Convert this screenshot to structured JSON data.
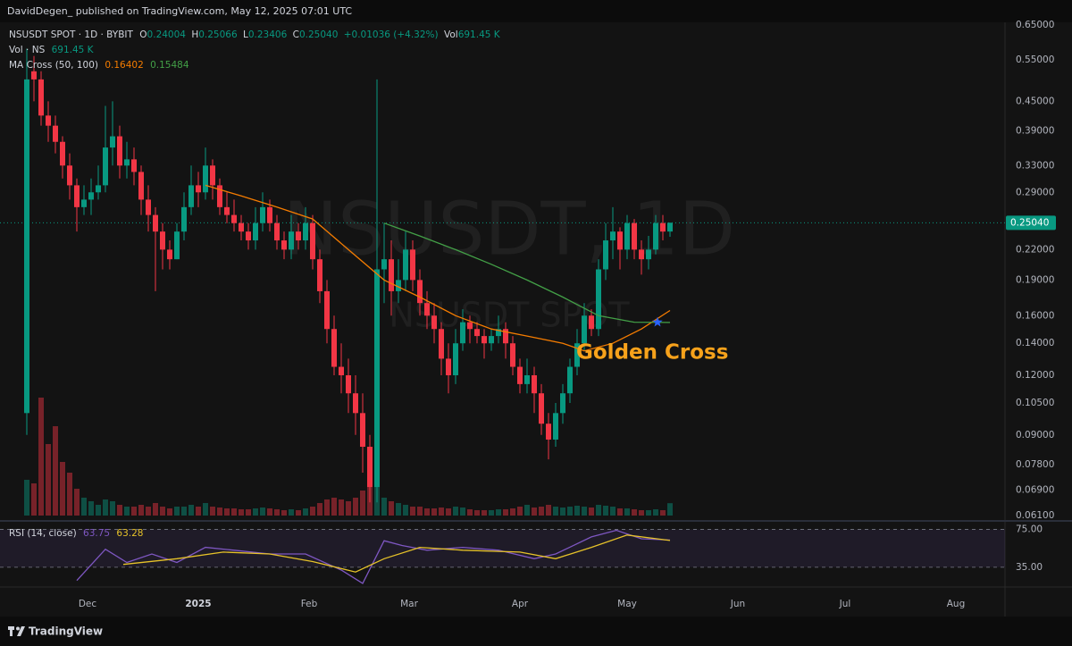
{
  "header": {
    "publisher": "DavidDegen_ published on TradingView.com, May 12, 2025 07:01 UTC"
  },
  "footer": {
    "brand": "TradingView"
  },
  "chart_data": {
    "type": "candlestick",
    "symbol": "NSUSDT SPOT · 1D · BYBIT",
    "ohlc_letters": [
      "O",
      "H",
      "L",
      "C"
    ],
    "change_label": "+0.01036 (+4.32%)",
    "vol_letter": "Vol",
    "volume_legend": "Vol · NS",
    "volume_last_label": "691.45 K",
    "ma_legend": "MA Cross (50, 100)",
    "watermark": "NSUSDT, 1D",
    "watermark_sub": "NSUSDT SPOT",
    "log_scale": true,
    "grid": false,
    "up_color": "#089981",
    "down_color": "#f23645",
    "xlim": [
      -3.75,
      136.25
    ],
    "xticks": [
      {
        "value": 8.5,
        "label": "Dec"
      },
      {
        "value": 24,
        "label": "2025"
      },
      {
        "value": 39.5,
        "label": "Feb"
      },
      {
        "value": 53.5,
        "label": "Mar"
      },
      {
        "value": 69,
        "label": "Apr"
      },
      {
        "value": 84,
        "label": "May"
      },
      {
        "value": 99.5,
        "label": "Jun"
      },
      {
        "value": 114.5,
        "label": "Jul"
      },
      {
        "value": 130,
        "label": "Aug"
      }
    ],
    "ylim": [
      0.061,
      0.65
    ],
    "yticks": [
      {
        "value": 0.65,
        "label": "0.65000"
      },
      {
        "value": 0.55,
        "label": "0.55000"
      },
      {
        "value": 0.45,
        "label": "0.45000"
      },
      {
        "value": 0.39,
        "label": "0.39000"
      },
      {
        "value": 0.33,
        "label": "0.33000"
      },
      {
        "value": 0.29,
        "label": "0.29000"
      },
      {
        "value": 0.22,
        "label": "0.22000"
      },
      {
        "value": 0.19,
        "label": "0.19000"
      },
      {
        "value": 0.16,
        "label": "0.16000"
      },
      {
        "value": 0.14,
        "label": "0.14000"
      },
      {
        "value": 0.12,
        "label": "0.12000"
      },
      {
        "value": 0.105,
        "label": "0.10500"
      },
      {
        "value": 0.09,
        "label": "0.09000"
      },
      {
        "value": 0.078,
        "label": "0.07800"
      },
      {
        "value": 0.069,
        "label": "0.06900"
      },
      {
        "value": 0.061,
        "label": "0.06100"
      }
    ],
    "current_price": {
      "value": 0.2504,
      "label": "0.25040",
      "color": "#089981"
    },
    "candles": [
      [
        0.1,
        0.58,
        0.09,
        0.5
      ],
      [
        0.52,
        0.56,
        0.45,
        0.5
      ],
      [
        0.5,
        0.52,
        0.4,
        0.42
      ],
      [
        0.42,
        0.45,
        0.37,
        0.4
      ],
      [
        0.4,
        0.42,
        0.35,
        0.37
      ],
      [
        0.37,
        0.38,
        0.31,
        0.33
      ],
      [
        0.33,
        0.35,
        0.28,
        0.3
      ],
      [
        0.3,
        0.31,
        0.24,
        0.27
      ],
      [
        0.27,
        0.3,
        0.26,
        0.28
      ],
      [
        0.28,
        0.31,
        0.26,
        0.29
      ],
      [
        0.29,
        0.33,
        0.28,
        0.3
      ],
      [
        0.3,
        0.44,
        0.29,
        0.36
      ],
      [
        0.36,
        0.45,
        0.33,
        0.38
      ],
      [
        0.38,
        0.4,
        0.31,
        0.33
      ],
      [
        0.33,
        0.37,
        0.31,
        0.34
      ],
      [
        0.34,
        0.36,
        0.3,
        0.32
      ],
      [
        0.32,
        0.33,
        0.26,
        0.28
      ],
      [
        0.28,
        0.3,
        0.24,
        0.26
      ],
      [
        0.26,
        0.27,
        0.18,
        0.24
      ],
      [
        0.24,
        0.25,
        0.2,
        0.22
      ],
      [
        0.22,
        0.23,
        0.2,
        0.21
      ],
      [
        0.21,
        0.25,
        0.21,
        0.24
      ],
      [
        0.24,
        0.29,
        0.23,
        0.27
      ],
      [
        0.27,
        0.33,
        0.26,
        0.3
      ],
      [
        0.3,
        0.32,
        0.27,
        0.29
      ],
      [
        0.29,
        0.36,
        0.28,
        0.33
      ],
      [
        0.33,
        0.34,
        0.28,
        0.3
      ],
      [
        0.3,
        0.31,
        0.26,
        0.27
      ],
      [
        0.27,
        0.29,
        0.25,
        0.26
      ],
      [
        0.26,
        0.28,
        0.24,
        0.25
      ],
      [
        0.25,
        0.26,
        0.23,
        0.24
      ],
      [
        0.24,
        0.25,
        0.22,
        0.23
      ],
      [
        0.23,
        0.27,
        0.22,
        0.25
      ],
      [
        0.25,
        0.29,
        0.24,
        0.27
      ],
      [
        0.27,
        0.28,
        0.24,
        0.25
      ],
      [
        0.25,
        0.26,
        0.22,
        0.23
      ],
      [
        0.23,
        0.24,
        0.21,
        0.22
      ],
      [
        0.22,
        0.26,
        0.21,
        0.24
      ],
      [
        0.24,
        0.25,
        0.22,
        0.23
      ],
      [
        0.23,
        0.27,
        0.22,
        0.25
      ],
      [
        0.25,
        0.26,
        0.2,
        0.21
      ],
      [
        0.21,
        0.22,
        0.17,
        0.18
      ],
      [
        0.18,
        0.19,
        0.14,
        0.15
      ],
      [
        0.15,
        0.16,
        0.12,
        0.125
      ],
      [
        0.125,
        0.14,
        0.11,
        0.12
      ],
      [
        0.12,
        0.13,
        0.1,
        0.11
      ],
      [
        0.11,
        0.12,
        0.09,
        0.1
      ],
      [
        0.1,
        0.11,
        0.075,
        0.085
      ],
      [
        0.085,
        0.09,
        0.065,
        0.07
      ],
      [
        0.07,
        0.5,
        0.065,
        0.2
      ],
      [
        0.2,
        0.25,
        0.17,
        0.21
      ],
      [
        0.21,
        0.23,
        0.16,
        0.18
      ],
      [
        0.18,
        0.21,
        0.17,
        0.19
      ],
      [
        0.19,
        0.24,
        0.18,
        0.22
      ],
      [
        0.22,
        0.23,
        0.18,
        0.19
      ],
      [
        0.19,
        0.2,
        0.16,
        0.17
      ],
      [
        0.17,
        0.18,
        0.15,
        0.16
      ],
      [
        0.16,
        0.17,
        0.14,
        0.15
      ],
      [
        0.15,
        0.155,
        0.12,
        0.13
      ],
      [
        0.13,
        0.14,
        0.11,
        0.12
      ],
      [
        0.12,
        0.15,
        0.115,
        0.14
      ],
      [
        0.14,
        0.165,
        0.135,
        0.155
      ],
      [
        0.155,
        0.16,
        0.14,
        0.15
      ],
      [
        0.15,
        0.155,
        0.14,
        0.145
      ],
      [
        0.145,
        0.15,
        0.13,
        0.14
      ],
      [
        0.14,
        0.15,
        0.135,
        0.145
      ],
      [
        0.145,
        0.16,
        0.14,
        0.15
      ],
      [
        0.15,
        0.155,
        0.13,
        0.14
      ],
      [
        0.14,
        0.145,
        0.12,
        0.125
      ],
      [
        0.125,
        0.13,
        0.11,
        0.115
      ],
      [
        0.115,
        0.13,
        0.11,
        0.12
      ],
      [
        0.12,
        0.125,
        0.1,
        0.11
      ],
      [
        0.11,
        0.115,
        0.09,
        0.095
      ],
      [
        0.095,
        0.1,
        0.08,
        0.088
      ],
      [
        0.088,
        0.105,
        0.085,
        0.1
      ],
      [
        0.1,
        0.115,
        0.095,
        0.11
      ],
      [
        0.11,
        0.13,
        0.105,
        0.125
      ],
      [
        0.125,
        0.15,
        0.12,
        0.14
      ],
      [
        0.14,
        0.17,
        0.135,
        0.16
      ],
      [
        0.16,
        0.165,
        0.145,
        0.15
      ],
      [
        0.15,
        0.21,
        0.145,
        0.2
      ],
      [
        0.2,
        0.25,
        0.19,
        0.23
      ],
      [
        0.23,
        0.27,
        0.21,
        0.24
      ],
      [
        0.24,
        0.245,
        0.2,
        0.22
      ],
      [
        0.22,
        0.26,
        0.21,
        0.25
      ],
      [
        0.25,
        0.255,
        0.21,
        0.22
      ],
      [
        0.22,
        0.23,
        0.195,
        0.21
      ],
      [
        0.21,
        0.235,
        0.2,
        0.22
      ],
      [
        0.22,
        0.26,
        0.215,
        0.25
      ],
      [
        0.25,
        0.26,
        0.23,
        0.24
      ],
      [
        0.24004,
        0.25066,
        0.23406,
        0.2504
      ]
    ],
    "volume_ylim": [
      0,
      10000
    ],
    "volume": [
      2000,
      1800,
      6600,
      4000,
      5000,
      3000,
      2400,
      1500,
      1000,
      800,
      600,
      900,
      800,
      600,
      500,
      500,
      600,
      500,
      700,
      500,
      400,
      500,
      500,
      600,
      500,
      700,
      500,
      450,
      400,
      400,
      350,
      350,
      400,
      450,
      400,
      350,
      300,
      350,
      300,
      400,
      500,
      700,
      900,
      1000,
      900,
      800,
      1000,
      1400,
      2000,
      1900,
      1000,
      800,
      700,
      600,
      500,
      500,
      400,
      400,
      450,
      400,
      500,
      450,
      350,
      300,
      300,
      300,
      350,
      350,
      400,
      500,
      600,
      450,
      500,
      600,
      500,
      450,
      500,
      550,
      500,
      450,
      600,
      550,
      500,
      400,
      400,
      350,
      300,
      300,
      350,
      300,
      691.45
    ],
    "ma_lines": [
      {
        "color": "#f57c00",
        "x": [
          25,
          30,
          35,
          40,
          45,
          50,
          55,
          60,
          65,
          70,
          75,
          78,
          82,
          86,
          90
        ],
        "values": [
          0.3,
          0.285,
          0.27,
          0.255,
          0.22,
          0.19,
          0.175,
          0.16,
          0.15,
          0.145,
          0.14,
          0.135,
          0.14,
          0.15,
          0.16402
        ]
      },
      {
        "color": "#43a047",
        "x": [
          50,
          55,
          60,
          65,
          70,
          75,
          80,
          85,
          90
        ],
        "values": [
          0.25,
          0.235,
          0.22,
          0.205,
          0.19,
          0.175,
          0.16,
          0.155,
          0.15484
        ]
      }
    ],
    "golden_cross": {
      "text": "Golden Cross",
      "color": "#f7a21b",
      "marker_color": "#2962ff",
      "x": 88.25,
      "value": 0.155
    },
    "rsi": {
      "legend": "RSI (14, close)",
      "ylim": [
        16,
        82
      ],
      "yticks": [
        {
          "value": 75,
          "label": "75.00"
        },
        {
          "value": 35,
          "label": "35.00"
        }
      ],
      "series": [
        {
          "color": "#7e57c2",
          "x": [
            7,
            11,
            14,
            17.5,
            21,
            25,
            29,
            34,
            39,
            44,
            47,
            50,
            52.5,
            56,
            61,
            66,
            71,
            74,
            79,
            82.5,
            86,
            90
          ],
          "values": [
            21,
            54,
            40,
            49,
            40,
            56,
            53,
            49,
            49,
            32,
            18,
            63,
            58,
            53,
            56,
            53,
            44,
            49,
            67,
            74,
            65,
            63.75
          ]
        },
        {
          "color": "#e6c229",
          "x": [
            13.5,
            21,
            27.5,
            34,
            40,
            46,
            50,
            55,
            61,
            69,
            74,
            79,
            84,
            90
          ],
          "values": [
            38,
            44,
            51,
            49,
            41,
            30,
            44,
            56,
            53,
            51,
            44,
            56,
            69,
            63.28
          ]
        }
      ]
    }
  }
}
